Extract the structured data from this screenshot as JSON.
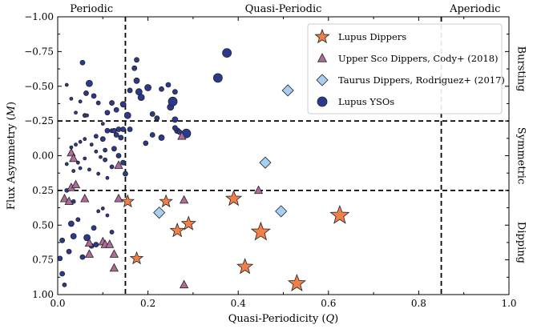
{
  "chart_data": {
    "type": "scatter",
    "xlabel": "Quasi-Periodicity (Q)",
    "xlabel_parts": [
      "Quasi-Periodicity (",
      "Q",
      ")"
    ],
    "ylabel": "Flux Asymmetry (M)",
    "ylabel_parts": [
      "Flux Asymmetry (",
      "M",
      ")"
    ],
    "xlim": [
      0.0,
      1.0
    ],
    "ylim": [
      1.0,
      -1.0
    ],
    "y_inverted": true,
    "xticks": [
      0.0,
      0.2,
      0.4,
      0.6,
      0.8,
      1.0
    ],
    "xtick_labels": [
      "0.0",
      "0.2",
      "0.4",
      "0.6",
      "0.8",
      "1.0"
    ],
    "yticks": [
      -1.0,
      -0.75,
      -0.5,
      -0.25,
      0.0,
      0.25,
      0.5,
      0.75,
      1.0
    ],
    "ytick_labels": [
      "−1.00",
      "−0.75",
      "−0.50",
      "−0.25",
      "0.00",
      "0.25",
      "0.50",
      "0.75",
      "1.00"
    ],
    "grid": false,
    "legend_position": "top-right",
    "region_lines": {
      "vertical": [
        0.15,
        0.85
      ],
      "horizontal": [
        -0.25,
        0.25
      ]
    },
    "top_labels": [
      {
        "text": "Periodic",
        "x": 0.075
      },
      {
        "text": "Quasi-Periodic",
        "x": 0.5
      },
      {
        "text": "Aperiodic",
        "x": 0.925
      }
    ],
    "right_labels": [
      {
        "text": "Bursting",
        "y": -0.625
      },
      {
        "text": "Symmetric",
        "y": 0.0
      },
      {
        "text": "Dipping",
        "y": 0.625
      }
    ],
    "series": [
      {
        "name": "Lupus YSOs",
        "marker": "circle",
        "color": "#2b3a8f",
        "points": [
          {
            "x": 0.055,
            "y": -0.67,
            "s": 3
          },
          {
            "x": 0.07,
            "y": -0.52,
            "s": 4
          },
          {
            "x": 0.063,
            "y": -0.45,
            "s": 3
          },
          {
            "x": 0.02,
            "y": -0.51,
            "s": 2
          },
          {
            "x": 0.03,
            "y": -0.41,
            "s": 2
          },
          {
            "x": 0.04,
            "y": -0.31,
            "s": 2
          },
          {
            "x": 0.05,
            "y": -0.39,
            "s": 2
          },
          {
            "x": 0.06,
            "y": -0.29,
            "s": 2.5
          },
          {
            "x": 0.065,
            "y": -0.29,
            "s": 2
          },
          {
            "x": 0.08,
            "y": -0.43,
            "s": 3
          },
          {
            "x": 0.09,
            "y": -0.38,
            "s": 2.5
          },
          {
            "x": 0.1,
            "y": -0.23,
            "s": 2
          },
          {
            "x": 0.11,
            "y": -0.31,
            "s": 3
          },
          {
            "x": 0.12,
            "y": -0.38,
            "s": 3
          },
          {
            "x": 0.13,
            "y": -0.33,
            "s": 3
          },
          {
            "x": 0.145,
            "y": -0.37,
            "s": 3.5
          },
          {
            "x": 0.155,
            "y": -0.29,
            "s": 4
          },
          {
            "x": 0.16,
            "y": -0.19,
            "s": 3
          },
          {
            "x": 0.17,
            "y": -0.63,
            "s": 3
          },
          {
            "x": 0.175,
            "y": -0.69,
            "s": 3
          },
          {
            "x": 0.16,
            "y": -0.47,
            "s": 3
          },
          {
            "x": 0.175,
            "y": -0.54,
            "s": 3.5
          },
          {
            "x": 0.18,
            "y": -0.46,
            "s": 4
          },
          {
            "x": 0.185,
            "y": -0.42,
            "s": 4
          },
          {
            "x": 0.2,
            "y": -0.49,
            "s": 4
          },
          {
            "x": 0.21,
            "y": -0.3,
            "s": 3
          },
          {
            "x": 0.22,
            "y": -0.27,
            "s": 3
          },
          {
            "x": 0.23,
            "y": -0.48,
            "s": 3
          },
          {
            "x": 0.245,
            "y": -0.51,
            "s": 3
          },
          {
            "x": 0.25,
            "y": -0.35,
            "s": 4
          },
          {
            "x": 0.255,
            "y": -0.39,
            "s": 5.5
          },
          {
            "x": 0.26,
            "y": -0.46,
            "s": 3
          },
          {
            "x": 0.26,
            "y": -0.26,
            "s": 3.5
          },
          {
            "x": 0.265,
            "y": -0.18,
            "s": 3.5
          },
          {
            "x": 0.285,
            "y": -0.16,
            "s": 5.5
          },
          {
            "x": 0.27,
            "y": -0.17,
            "s": 3
          },
          {
            "x": 0.26,
            "y": -0.2,
            "s": 3
          },
          {
            "x": 0.23,
            "y": -0.13,
            "s": 3.5
          },
          {
            "x": 0.21,
            "y": -0.15,
            "s": 3
          },
          {
            "x": 0.195,
            "y": -0.09,
            "s": 3
          },
          {
            "x": 0.355,
            "y": -0.56,
            "s": 5.5
          },
          {
            "x": 0.375,
            "y": -0.74,
            "s": 5.5
          },
          {
            "x": 0.1,
            "y": -0.12,
            "s": 3
          },
          {
            "x": 0.11,
            "y": -0.18,
            "s": 3
          },
          {
            "x": 0.12,
            "y": -0.18,
            "s": 2.5
          },
          {
            "x": 0.125,
            "y": -0.18,
            "s": 3
          },
          {
            "x": 0.13,
            "y": -0.15,
            "s": 3
          },
          {
            "x": 0.135,
            "y": -0.19,
            "s": 3
          },
          {
            "x": 0.14,
            "y": -0.13,
            "s": 3
          },
          {
            "x": 0.145,
            "y": -0.19,
            "s": 3
          },
          {
            "x": 0.085,
            "y": -0.14,
            "s": 2.5
          },
          {
            "x": 0.06,
            "y": -0.12,
            "s": 2
          },
          {
            "x": 0.05,
            "y": -0.1,
            "s": 2
          },
          {
            "x": 0.04,
            "y": -0.08,
            "s": 2
          },
          {
            "x": 0.03,
            "y": -0.06,
            "s": 2
          },
          {
            "x": 0.075,
            "y": -0.08,
            "s": 2
          },
          {
            "x": 0.085,
            "y": -0.03,
            "s": 2
          },
          {
            "x": 0.095,
            "y": 0.01,
            "s": 2
          },
          {
            "x": 0.105,
            "y": 0.03,
            "s": 2.5
          },
          {
            "x": 0.12,
            "y": 0.08,
            "s": 2.5
          },
          {
            "x": 0.125,
            "y": -0.05,
            "s": 3
          },
          {
            "x": 0.135,
            "y": 0.0,
            "s": 3
          },
          {
            "x": 0.145,
            "y": 0.05,
            "s": 3
          },
          {
            "x": 0.15,
            "y": 0.13,
            "s": 3
          },
          {
            "x": 0.105,
            "y": -0.04,
            "s": 2.5
          },
          {
            "x": 0.06,
            "y": 0.02,
            "s": 2
          },
          {
            "x": 0.045,
            "y": 0.05,
            "s": 2
          },
          {
            "x": 0.035,
            "y": 0.11,
            "s": 2
          },
          {
            "x": 0.05,
            "y": 0.09,
            "s": 2
          },
          {
            "x": 0.07,
            "y": 0.1,
            "s": 2
          },
          {
            "x": 0.09,
            "y": 0.13,
            "s": 2
          },
          {
            "x": 0.11,
            "y": 0.16,
            "s": 2
          },
          {
            "x": 0.02,
            "y": 0.06,
            "s": 2
          },
          {
            "x": 0.02,
            "y": 0.25,
            "s": 2.5
          },
          {
            "x": 0.035,
            "y": 0.33,
            "s": 2.5
          },
          {
            "x": 0.045,
            "y": 0.46,
            "s": 2.5
          },
          {
            "x": 0.03,
            "y": 0.49,
            "s": 3.5
          },
          {
            "x": 0.035,
            "y": 0.58,
            "s": 3.5
          },
          {
            "x": 0.025,
            "y": 0.69,
            "s": 3
          },
          {
            "x": 0.01,
            "y": 0.61,
            "s": 3
          },
          {
            "x": 0.005,
            "y": 0.74,
            "s": 3
          },
          {
            "x": 0.01,
            "y": 0.85,
            "s": 3
          },
          {
            "x": 0.015,
            "y": 0.93,
            "s": 2.5
          },
          {
            "x": 0.055,
            "y": 0.73,
            "s": 3
          },
          {
            "x": 0.065,
            "y": 0.59,
            "s": 4
          },
          {
            "x": 0.075,
            "y": 0.65,
            "s": 3
          },
          {
            "x": 0.08,
            "y": 0.52,
            "s": 3
          },
          {
            "x": 0.085,
            "y": 0.64,
            "s": 3
          },
          {
            "x": 0.1,
            "y": 0.38,
            "s": 2
          },
          {
            "x": 0.11,
            "y": 0.43,
            "s": 2
          },
          {
            "x": 0.12,
            "y": 0.55,
            "s": 2.5
          },
          {
            "x": 0.09,
            "y": 0.4,
            "s": 2
          }
        ]
      },
      {
        "name": "Upper Sco Dippers, Cody+ (2018)",
        "marker": "triangle",
        "color": "#b06c98",
        "points": [
          {
            "x": 0.03,
            "y": -0.02
          },
          {
            "x": 0.035,
            "y": 0.02
          },
          {
            "x": 0.03,
            "y": 0.23
          },
          {
            "x": 0.04,
            "y": 0.21
          },
          {
            "x": 0.015,
            "y": 0.31
          },
          {
            "x": 0.025,
            "y": 0.33
          },
          {
            "x": 0.06,
            "y": 0.31
          },
          {
            "x": 0.07,
            "y": 0.63
          },
          {
            "x": 0.07,
            "y": 0.71
          },
          {
            "x": 0.1,
            "y": 0.62
          },
          {
            "x": 0.105,
            "y": 0.64
          },
          {
            "x": 0.115,
            "y": 0.64
          },
          {
            "x": 0.125,
            "y": 0.71
          },
          {
            "x": 0.125,
            "y": 0.81
          },
          {
            "x": 0.135,
            "y": 0.07
          },
          {
            "x": 0.135,
            "y": 0.31
          },
          {
            "x": 0.275,
            "y": -0.14
          },
          {
            "x": 0.28,
            "y": 0.32
          },
          {
            "x": 0.28,
            "y": 0.93
          },
          {
            "x": 0.445,
            "y": 0.25
          }
        ]
      },
      {
        "name": "Taurus Dippers, Rodriguez+ (2017)",
        "marker": "diamond",
        "color": "#a7cff1",
        "points": [
          {
            "x": 0.51,
            "y": -0.47
          },
          {
            "x": 0.46,
            "y": 0.05
          },
          {
            "x": 0.225,
            "y": 0.41
          },
          {
            "x": 0.495,
            "y": 0.4
          }
        ]
      },
      {
        "name": "Lupus Dippers",
        "marker": "star",
        "color": "#f07f4a",
        "points": [
          {
            "x": 0.155,
            "y": 0.33,
            "s": 8
          },
          {
            "x": 0.175,
            "y": 0.74,
            "s": 8
          },
          {
            "x": 0.24,
            "y": 0.33,
            "s": 8
          },
          {
            "x": 0.265,
            "y": 0.54,
            "s": 9
          },
          {
            "x": 0.29,
            "y": 0.49,
            "s": 9
          },
          {
            "x": 0.39,
            "y": 0.31,
            "s": 10
          },
          {
            "x": 0.415,
            "y": 0.8,
            "s": 10
          },
          {
            "x": 0.45,
            "y": 0.55,
            "s": 12
          },
          {
            "x": 0.53,
            "y": 0.92,
            "s": 11
          },
          {
            "x": 0.625,
            "y": 0.43,
            "s": 12
          }
        ]
      }
    ],
    "legend": [
      {
        "label": "Lupus Dippers",
        "marker": "star"
      },
      {
        "label": "Upper Sco Dippers, Cody+ (2018)",
        "marker": "triangle"
      },
      {
        "label": "Taurus Dippers, Rodriguez+ (2017)",
        "marker": "diamond"
      },
      {
        "label": "Lupus YSOs",
        "marker": "circle"
      }
    ]
  }
}
